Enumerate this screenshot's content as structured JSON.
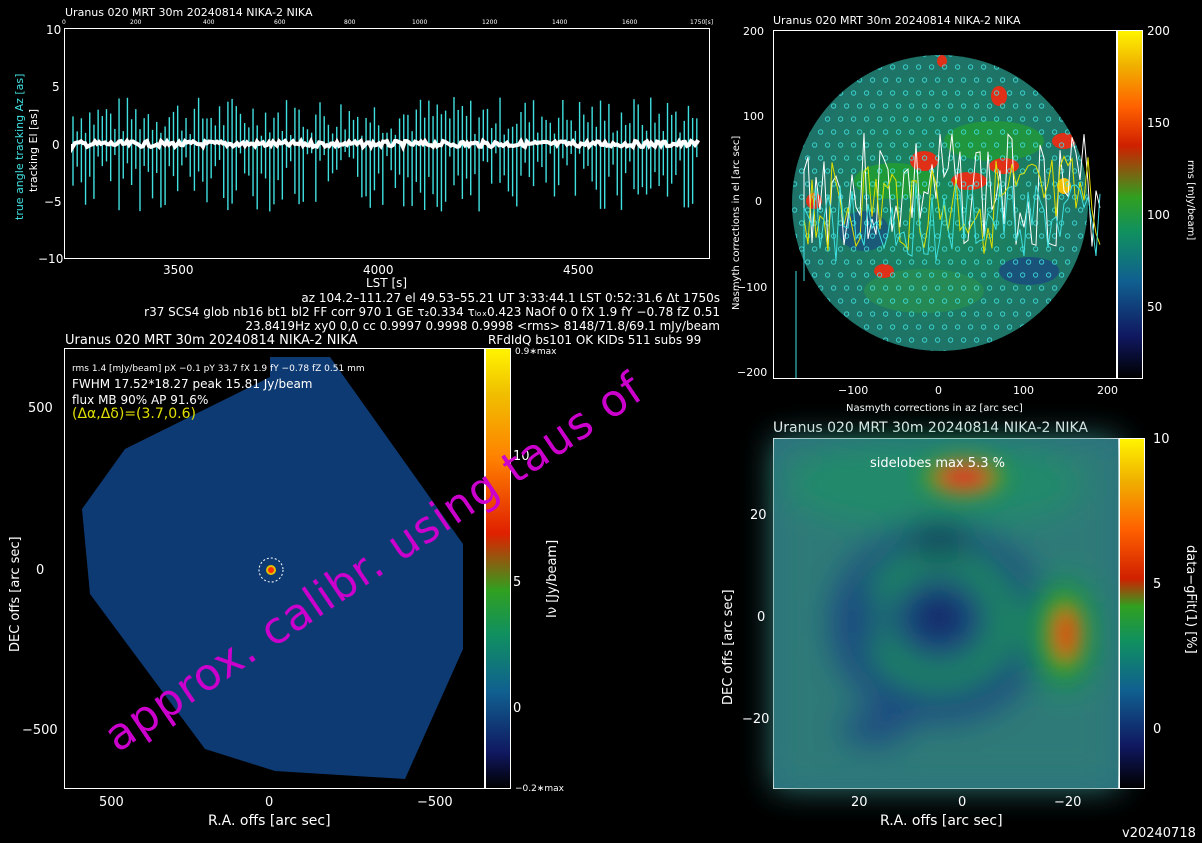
{
  "colors": {
    "cyan": "#40e0e0",
    "white": "#ffffff",
    "yellow": "#e0e000",
    "magenta": "#cc00cc",
    "map_blue": "#0e3a73"
  },
  "tracking_panel": {
    "title": "Uranus   020 MRT 30m  20240814 NIKA-2 NIKA",
    "ylabel_cyan": "true angle tracking Az [as]",
    "ylabel_white": "tracking El [as]",
    "xlabel": "LST [s]",
    "yticks": [
      "10",
      "5",
      "0",
      "−5",
      "−10"
    ],
    "xticks": [
      "3500",
      "4000",
      "4500"
    ],
    "top_ticks": [
      "0",
      "200",
      "400",
      "600",
      "800",
      "1000",
      "1200",
      "1400",
      "1600",
      "1750[s]"
    ]
  },
  "info_lines": {
    "line1": "az 104.2–111.27  el 49.53–55.21  UT 3:33:44.1  LST 0:52:31.6  Δt 1750s",
    "line2": "r37 SCS4 glob nb16 bt1 bl2 FF corr 970 1 GE τ₂0.334 τₗₒₓ0.423 NaOf 0 0 fX 1.9 fY −0.78 fZ 0.51",
    "line3": "23.8419Hz xy0 0,0 cc 0.9997 0.9998 0.9998 <rms> 8148/71.8/69.1 mJy/beam"
  },
  "map_panel": {
    "title": "Uranus   020 MRT 30m  20240814 NIKA-2 NIKA",
    "right_title": "RFdIdQ bs101 OK KIDs 511 subs 99",
    "rms_line": "rms 1.4 [mJy/beam]  pX −0.1  pY 33.7  fX 1.9  fY −0.78  fZ 0.51 mm",
    "fwhm_line": "FWHM 17.52*18.27  peak 15.81 Jy/beam",
    "flux_line": "flux MB 90%  AP 91.6%",
    "offset_line": "(Δα,Δδ)=(3.7,0.6)",
    "xlabel": "R.A. offs [arc sec]",
    "ylabel": "DEC offs [arc sec]",
    "xticks": [
      "500",
      "0",
      "−500"
    ],
    "yticks": [
      "500",
      "0",
      "−500"
    ],
    "cbar_label": "Iν [Jy/beam]",
    "cbar_ticks": [
      "10",
      "5",
      "0"
    ],
    "cbar_top": "0.9∗max",
    "cbar_bottom": "−0.2∗max"
  },
  "rms_panel": {
    "title": "Uranus   020 MRT 30m  20240814 NIKA-2 NIKA",
    "xlabel": "Nasmyth corrections in az [arc sec]",
    "ylabel": "Nasmyth corrections in el [arc sec]",
    "xticks": [
      "−100",
      "0",
      "100",
      "200"
    ],
    "yticks": [
      "200",
      "100",
      "0",
      "−100",
      "−200"
    ],
    "cbar_label": "rms [mJy/beam]",
    "cbar_ticks": [
      "200",
      "150",
      "100",
      "50"
    ]
  },
  "beam_panel": {
    "title": "Uranus   020 MRT 30m  20240814 NIKA-2 NIKA",
    "annotation": "sidelobes max 5.3 %",
    "xlabel": "R.A. offs [arc sec]",
    "ylabel": "DEC offs [arc sec]",
    "xticks": [
      "20",
      "0",
      "−20"
    ],
    "yticks": [
      "20",
      "0",
      "−20"
    ],
    "cbar_label": "data−gFit(1) [%]",
    "cbar_ticks": [
      "10",
      "5",
      "0"
    ]
  },
  "watermark": "approx. calibr. using taus of",
  "version": "v20240718"
}
